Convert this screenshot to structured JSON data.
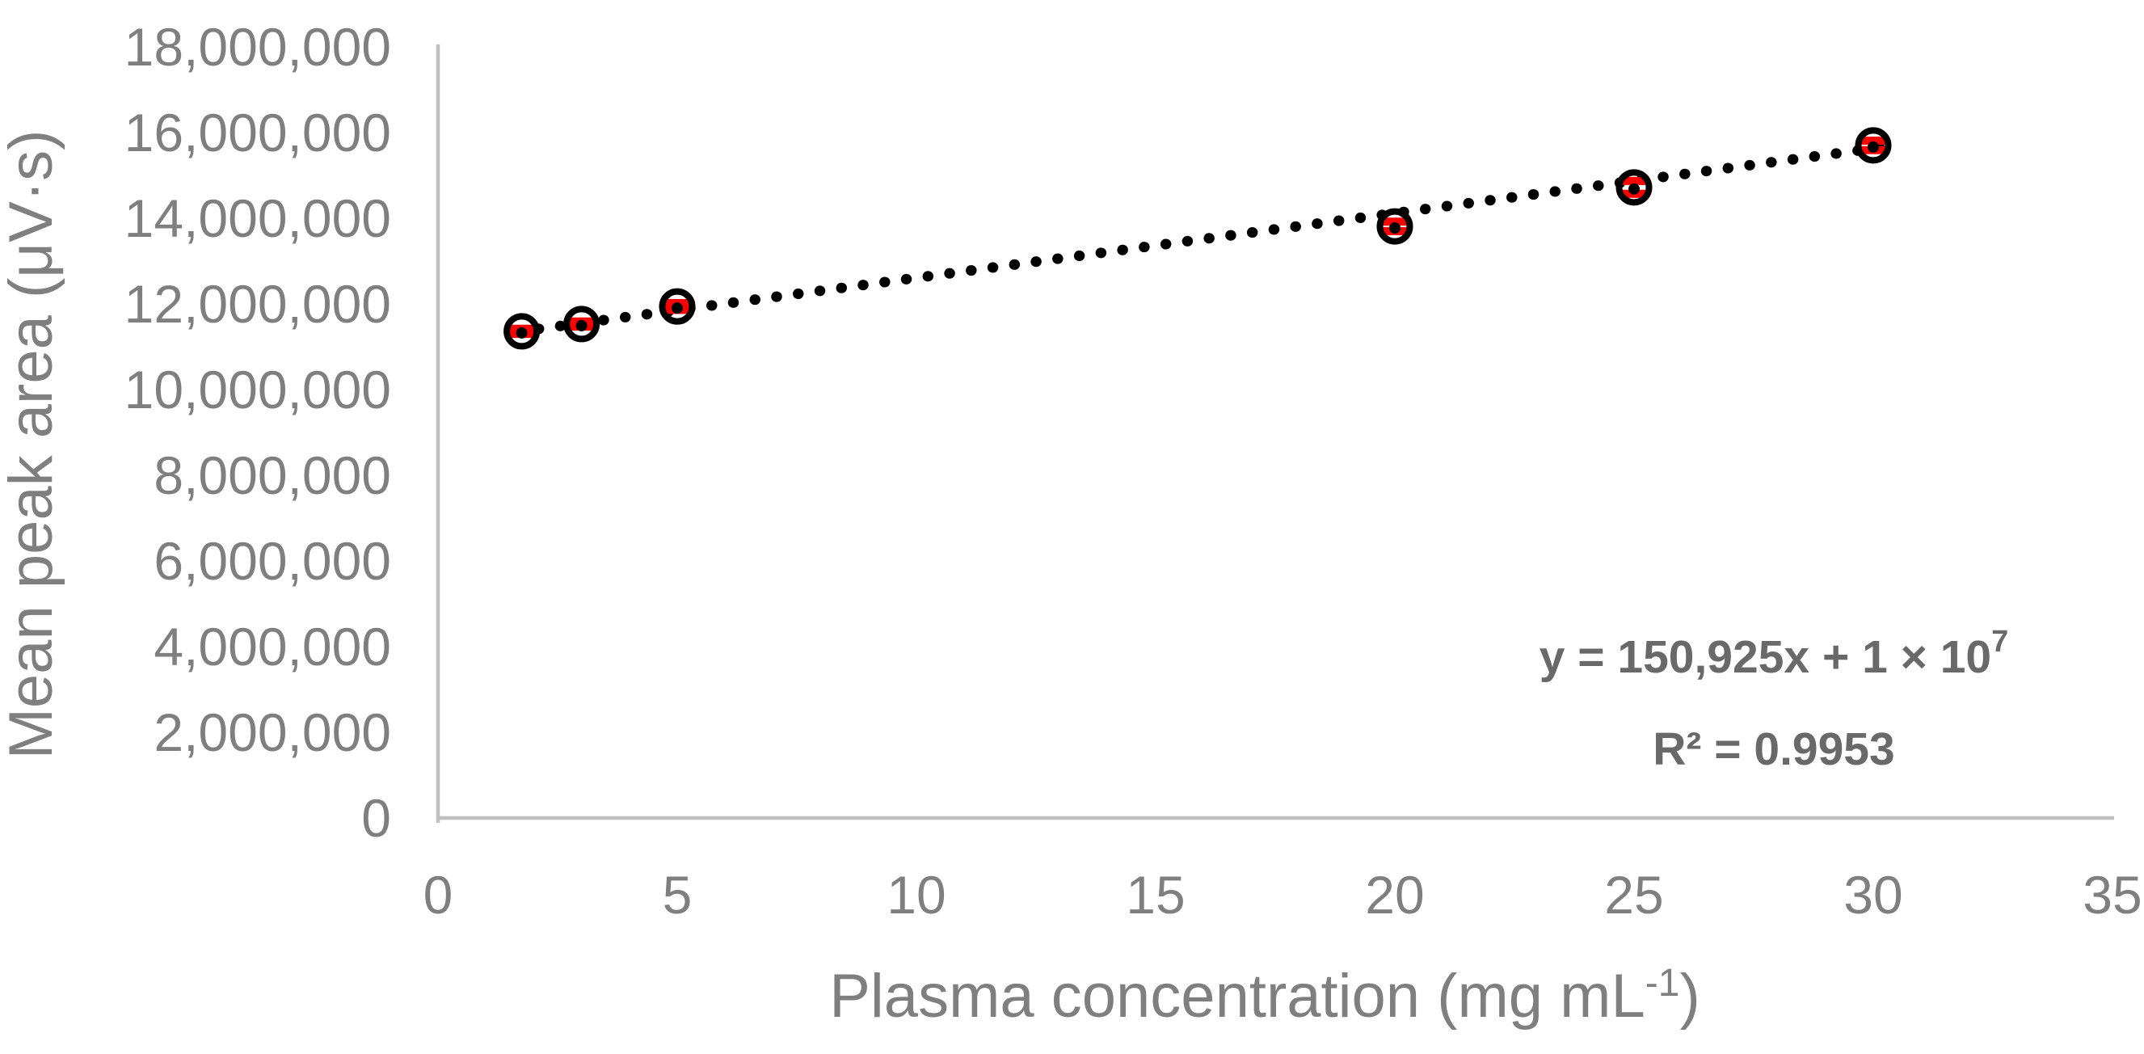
{
  "chart_data": {
    "type": "scatter",
    "title": "",
    "xlabel": "Plasma concentration (mg mL⁻¹)",
    "xlabel_parts": {
      "main": "Plasma concentration (mg mL",
      "sup": "-1",
      "close": ")"
    },
    "ylabel": "Mean peak area (μV·s)",
    "xlim": [
      0,
      35
    ],
    "ylim": [
      0,
      18000000
    ],
    "grid": false,
    "legend": "none",
    "x_ticks": [
      {
        "value": 0,
        "label": "0"
      },
      {
        "value": 5,
        "label": "5"
      },
      {
        "value": 10,
        "label": "10"
      },
      {
        "value": 15,
        "label": "15"
      },
      {
        "value": 20,
        "label": "20"
      },
      {
        "value": 25,
        "label": "25"
      },
      {
        "value": 30,
        "label": "30"
      },
      {
        "value": 35,
        "label": "35"
      }
    ],
    "y_ticks": [
      {
        "value": 0,
        "label": "0"
      },
      {
        "value": 2000000,
        "label": "2,000,000"
      },
      {
        "value": 4000000,
        "label": "4,000,000"
      },
      {
        "value": 6000000,
        "label": "6,000,000"
      },
      {
        "value": 8000000,
        "label": "8,000,000"
      },
      {
        "value": 10000000,
        "label": "10,000,000"
      },
      {
        "value": 12000000,
        "label": "12,000,000"
      },
      {
        "value": 14000000,
        "label": "14,000,000"
      },
      {
        "value": 16000000,
        "label": "16,000,000"
      },
      {
        "value": 18000000,
        "label": "18,000,000"
      }
    ],
    "points": [
      {
        "x": 1.75,
        "y": 11360000,
        "sd": 60000
      },
      {
        "x": 3,
        "y": 11530000,
        "sd": 60000
      },
      {
        "x": 5,
        "y": 11940000,
        "sd": 80000
      },
      {
        "x": 20,
        "y": 13810000,
        "sd": 110000
      },
      {
        "x": 25,
        "y": 14720000,
        "sd": 150000
      },
      {
        "x": 30,
        "y": 15700000,
        "sd": 110000
      }
    ],
    "trendline": {
      "style": "dotted",
      "slope": 150925,
      "intercept_displayed": "1 × 10⁷",
      "intercept_fit": 11100000,
      "x_start": 1.65,
      "x_end": 30.4,
      "equation_main": "y = 150,925x + 1 × 10",
      "equation_sup": "7",
      "r2_label": "R² = 0.9953"
    },
    "colors": {
      "axis_line": "#bfbfbf",
      "tick_text": "#7f7f7f",
      "title_text": "#7f7f7f",
      "equation_text": "#696969",
      "marker_ring": "#000000",
      "trendline": "#000000",
      "error_bar": "#ff0000",
      "background": "#ffffff"
    }
  }
}
